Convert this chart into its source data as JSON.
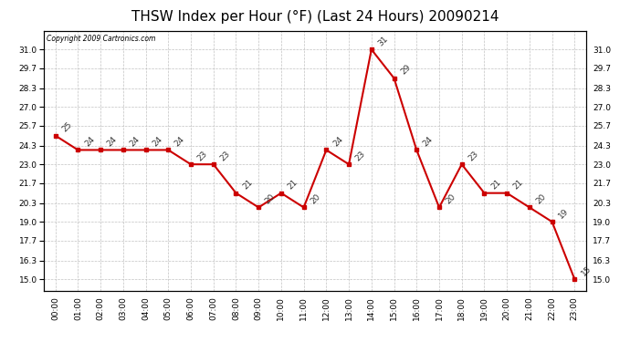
{
  "title": "THSW Index per Hour (°F) (Last 24 Hours) 20090214",
  "copyright": "Copyright 2009 Cartronics.com",
  "hours": [
    "00:00",
    "01:00",
    "02:00",
    "03:00",
    "04:00",
    "05:00",
    "06:00",
    "07:00",
    "08:00",
    "09:00",
    "10:00",
    "11:00",
    "12:00",
    "13:00",
    "14:00",
    "15:00",
    "16:00",
    "17:00",
    "18:00",
    "19:00",
    "20:00",
    "21:00",
    "22:00",
    "23:00"
  ],
  "values": [
    25,
    24,
    24,
    24,
    24,
    24,
    23,
    23,
    21,
    20,
    21,
    20,
    24,
    23,
    31,
    29,
    24,
    20,
    23,
    21,
    21,
    20,
    19,
    15
  ],
  "line_color": "#cc0000",
  "marker_color": "#cc0000",
  "bg_color": "#ffffff",
  "plot_bg_color": "#ffffff",
  "grid_color": "#bbbbbb",
  "title_fontsize": 11,
  "yticks": [
    15.0,
    16.3,
    17.7,
    19.0,
    20.3,
    21.7,
    23.0,
    24.3,
    25.7,
    27.0,
    28.3,
    29.7,
    31.0
  ],
  "ylim": [
    14.2,
    32.3
  ],
  "xlim": [
    -0.5,
    23.5
  ]
}
